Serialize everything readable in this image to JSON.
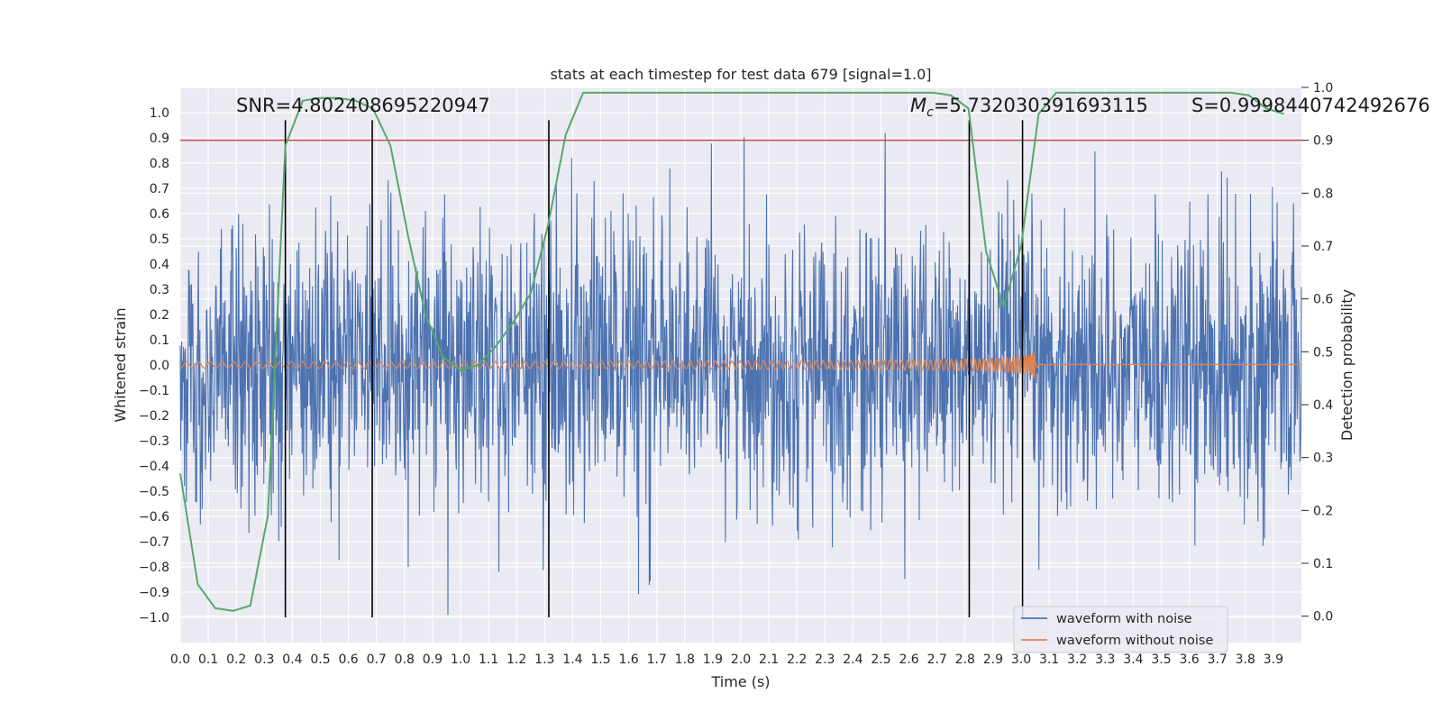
{
  "chart_data": {
    "type": "line",
    "title": "stats at each timestep for test data 679 [signal=1.0]",
    "xlabel": "Time (s)",
    "ylabel": "Whitened strain",
    "ylabel_right": "Detection probability",
    "xlim": [
      0.0,
      4.0
    ],
    "ylim": [
      -1.1,
      1.1
    ],
    "ylim_right": [
      -0.05,
      1.0
    ],
    "x_ticks": [
      "0.0",
      "0.1",
      "0.2",
      "0.3",
      "0.4",
      "0.5",
      "0.6",
      "0.7",
      "0.8",
      "0.9",
      "1.0",
      "1.1",
      "1.2",
      "1.3",
      "1.4",
      "1.5",
      "1.6",
      "1.7",
      "1.8",
      "1.9",
      "2.0",
      "2.1",
      "2.2",
      "2.3",
      "2.4",
      "2.5",
      "2.6",
      "2.7",
      "2.8",
      "2.9",
      "3.0",
      "3.1",
      "3.2",
      "3.3",
      "3.4",
      "3.5",
      "3.6",
      "3.7",
      "3.8",
      "3.9"
    ],
    "y_ticks": [
      "1.0",
      "0.9",
      "0.8",
      "0.7",
      "0.6",
      "0.5",
      "0.4",
      "0.3",
      "0.2",
      "0.1",
      "0.0",
      "−0.1",
      "−0.2",
      "−0.3",
      "−0.4",
      "−0.5",
      "−0.6",
      "−0.7",
      "−0.8",
      "−0.9",
      "−1.0"
    ],
    "y_ticks_right": [
      "1.0",
      "0.9",
      "0.8",
      "0.7",
      "0.6",
      "0.5",
      "0.4",
      "0.3",
      "0.2",
      "0.1",
      "0.0"
    ],
    "annotations": {
      "snr": "SNR=4.802408695220947",
      "mc_symbol": "M",
      "mc_sub": "c",
      "mc_value": "=5.732030391693115",
      "s": "S=0.9998440742492676"
    },
    "legend_position": "lower-right",
    "grid": true,
    "threshold_line": {
      "axis": "right",
      "value": 0.9,
      "color": "#c44e52"
    },
    "vertical_lines": [
      0.375,
      0.685,
      1.315,
      2.815,
      3.005
    ],
    "series": [
      {
        "name": "waveform with noise",
        "color": "#4c72b0",
        "axis": "left"
      },
      {
        "name": "waveform without noise",
        "color": "#dd8452",
        "axis": "left"
      },
      {
        "name": "Detection probability",
        "color": "#55a868",
        "axis": "right",
        "x": [
          0.0,
          0.0625,
          0.125,
          0.1875,
          0.25,
          0.3125,
          0.375,
          0.4375,
          0.5,
          0.5625,
          0.625,
          0.6875,
          0.75,
          0.8125,
          0.875,
          0.9375,
          1.0,
          1.0625,
          1.125,
          1.1875,
          1.25,
          1.3125,
          1.375,
          1.4375,
          1.5,
          2.5,
          2.625,
          2.6875,
          2.75,
          2.8125,
          2.875,
          2.9375,
          3.0,
          3.0625,
          3.125,
          3.1875,
          3.25,
          3.5,
          3.75,
          3.8125,
          3.875,
          3.9375
        ],
        "y": [
          0.27,
          0.06,
          0.015,
          0.01,
          0.02,
          0.19,
          0.89,
          0.975,
          0.98,
          0.98,
          0.975,
          0.96,
          0.89,
          0.72,
          0.57,
          0.49,
          0.465,
          0.475,
          0.51,
          0.555,
          0.61,
          0.74,
          0.91,
          0.99,
          0.99,
          0.99,
          0.99,
          0.99,
          0.985,
          0.96,
          0.69,
          0.585,
          0.7,
          0.95,
          0.99,
          0.99,
          0.99,
          0.99,
          0.99,
          0.985,
          0.96,
          0.95
        ]
      }
    ]
  }
}
